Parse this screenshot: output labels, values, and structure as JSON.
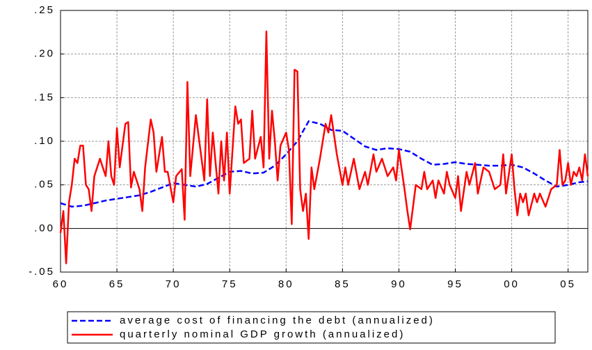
{
  "chart_data": {
    "type": "line",
    "xlim": [
      1960,
      2006.75
    ],
    "ylim": [
      -0.05,
      0.25
    ],
    "xticks": [
      {
        "value": 1960,
        "label": "60"
      },
      {
        "value": 1965,
        "label": "65"
      },
      {
        "value": 1970,
        "label": "70"
      },
      {
        "value": 1975,
        "label": "75"
      },
      {
        "value": 1980,
        "label": "80"
      },
      {
        "value": 1985,
        "label": "85"
      },
      {
        "value": 1990,
        "label": "90"
      },
      {
        "value": 1995,
        "label": "95"
      },
      {
        "value": 2000,
        "label": "00"
      },
      {
        "value": 2005,
        "label": "05"
      }
    ],
    "yticks": [
      {
        "value": -0.05,
        "label": "-.05"
      },
      {
        "value": 0,
        "label": ".00"
      },
      {
        "value": 0.05,
        "label": ".05"
      },
      {
        "value": 0.1,
        "label": ".10"
      },
      {
        "value": 0.15,
        "label": ".15"
      },
      {
        "value": 0.2,
        "label": ".20"
      },
      {
        "value": 0.25,
        "label": ".25"
      }
    ],
    "grid": true,
    "series": [
      {
        "name": "average cost of financing the debt (annualized)",
        "color": "#0000ff",
        "style": "dashed",
        "x": [
          1960,
          1961,
          1962,
          1963,
          1964,
          1965,
          1966,
          1967,
          1968,
          1969,
          1970,
          1971,
          1972,
          1973,
          1974,
          1975,
          1976,
          1977,
          1978,
          1979,
          1980,
          1981,
          1982,
          1983,
          1984,
          1985,
          1986,
          1987,
          1988,
          1989,
          1990,
          1991,
          1992,
          1993,
          1994,
          1995,
          1996,
          1997,
          1998,
          1999,
          2000,
          2001,
          2002,
          2003,
          2004,
          2005,
          2006,
          2006.75
        ],
        "values": [
          0.029,
          0.025,
          0.026,
          0.029,
          0.032,
          0.034,
          0.036,
          0.038,
          0.042,
          0.047,
          0.052,
          0.05,
          0.048,
          0.051,
          0.058,
          0.065,
          0.066,
          0.063,
          0.064,
          0.072,
          0.085,
          0.1,
          0.123,
          0.12,
          0.113,
          0.112,
          0.103,
          0.094,
          0.09,
          0.092,
          0.091,
          0.088,
          0.08,
          0.073,
          0.074,
          0.076,
          0.074,
          0.073,
          0.072,
          0.072,
          0.073,
          0.07,
          0.063,
          0.055,
          0.048,
          0.05,
          0.053,
          0.054
        ]
      },
      {
        "name": "quarterly nominal GDP growth (annualized)",
        "color": "#ff0000",
        "style": "solid",
        "x": [
          1960,
          1960.25,
          1960.5,
          1960.75,
          1961,
          1961.25,
          1961.5,
          1961.75,
          1962,
          1962.25,
          1962.5,
          1962.75,
          1963,
          1963.5,
          1964,
          1964.25,
          1964.5,
          1964.75,
          1965,
          1965.25,
          1965.75,
          1966,
          1966.25,
          1966.5,
          1967,
          1967.25,
          1967.5,
          1968,
          1968.25,
          1968.5,
          1969,
          1969.25,
          1969.5,
          1970,
          1970.25,
          1970.75,
          1971,
          1971.25,
          1971.5,
          1972,
          1972.5,
          1972.75,
          1973,
          1973.25,
          1973.5,
          1974,
          1974.25,
          1974.5,
          1974.75,
          1975,
          1975.5,
          1975.75,
          1976,
          1976.25,
          1976.75,
          1977,
          1977.25,
          1977.75,
          1978,
          1978.25,
          1978.5,
          1978.75,
          1979,
          1979.25,
          1979.5,
          1980,
          1980.25,
          1980.5,
          1980.75,
          1981,
          1981.25,
          1981.5,
          1981.75,
          1982,
          1982.25,
          1982.5,
          1983,
          1983.5,
          1983.75,
          1984,
          1984.5,
          1985,
          1985.25,
          1985.5,
          1986,
          1986.5,
          1987,
          1987.25,
          1987.75,
          1988,
          1988.5,
          1989,
          1989.5,
          1989.75,
          1990,
          1990.5,
          1990.75,
          1991,
          1991.5,
          1992,
          1992.25,
          1992.5,
          1993,
          1993.25,
          1993.5,
          1994,
          1994.25,
          1994.5,
          1995,
          1995.25,
          1995.5,
          1996,
          1996.25,
          1996.75,
          1997,
          1997.5,
          1998,
          1998.5,
          1999,
          1999.25,
          1999.5,
          2000,
          2000.25,
          2000.5,
          2000.75,
          2001,
          2001.25,
          2001.5,
          2002,
          2002.25,
          2002.5,
          2003,
          2003.5,
          2004,
          2004.25,
          2004.5,
          2004.75,
          2005,
          2005.25,
          2005.5,
          2005.75,
          2006,
          2006.25,
          2006.5,
          2006.75
        ],
        "values": [
          -0.005,
          0.02,
          -0.04,
          0.03,
          0.05,
          0.08,
          0.075,
          0.095,
          0.095,
          0.05,
          0.045,
          0.02,
          0.06,
          0.08,
          0.06,
          0.1,
          0.06,
          0.05,
          0.115,
          0.07,
          0.12,
          0.122,
          0.047,
          0.065,
          0.045,
          0.02,
          0.07,
          0.125,
          0.11,
          0.065,
          0.105,
          0.065,
          0.065,
          0.03,
          0.06,
          0.068,
          0.01,
          0.168,
          0.06,
          0.13,
          0.08,
          0.055,
          0.148,
          0.06,
          0.11,
          0.04,
          0.1,
          0.055,
          0.11,
          0.04,
          0.14,
          0.12,
          0.125,
          0.075,
          0.08,
          0.135,
          0.08,
          0.105,
          0.07,
          0.226,
          0.08,
          0.135,
          0.1,
          0.055,
          0.095,
          0.11,
          0.09,
          0.005,
          0.182,
          0.18,
          0.045,
          0.02,
          0.04,
          -0.012,
          0.07,
          0.045,
          0.08,
          0.12,
          0.11,
          0.13,
          0.085,
          0.05,
          0.07,
          0.05,
          0.08,
          0.045,
          0.065,
          0.05,
          0.085,
          0.065,
          0.08,
          0.06,
          0.07,
          0.055,
          0.09,
          0.045,
          0.02,
          -0.001,
          0.05,
          0.045,
          0.065,
          0.045,
          0.055,
          0.035,
          0.055,
          0.04,
          0.065,
          0.05,
          0.035,
          0.06,
          0.02,
          0.065,
          0.05,
          0.075,
          0.04,
          0.07,
          0.065,
          0.045,
          0.05,
          0.085,
          0.04,
          0.085,
          0.045,
          0.015,
          0.04,
          0.03,
          0.04,
          0.015,
          0.04,
          0.03,
          0.04,
          0.025,
          0.045,
          0.05,
          0.09,
          0.05,
          0.055,
          0.075,
          0.05,
          0.065,
          0.06,
          0.07,
          0.055,
          0.085,
          0.06
        ]
      }
    ]
  }
}
